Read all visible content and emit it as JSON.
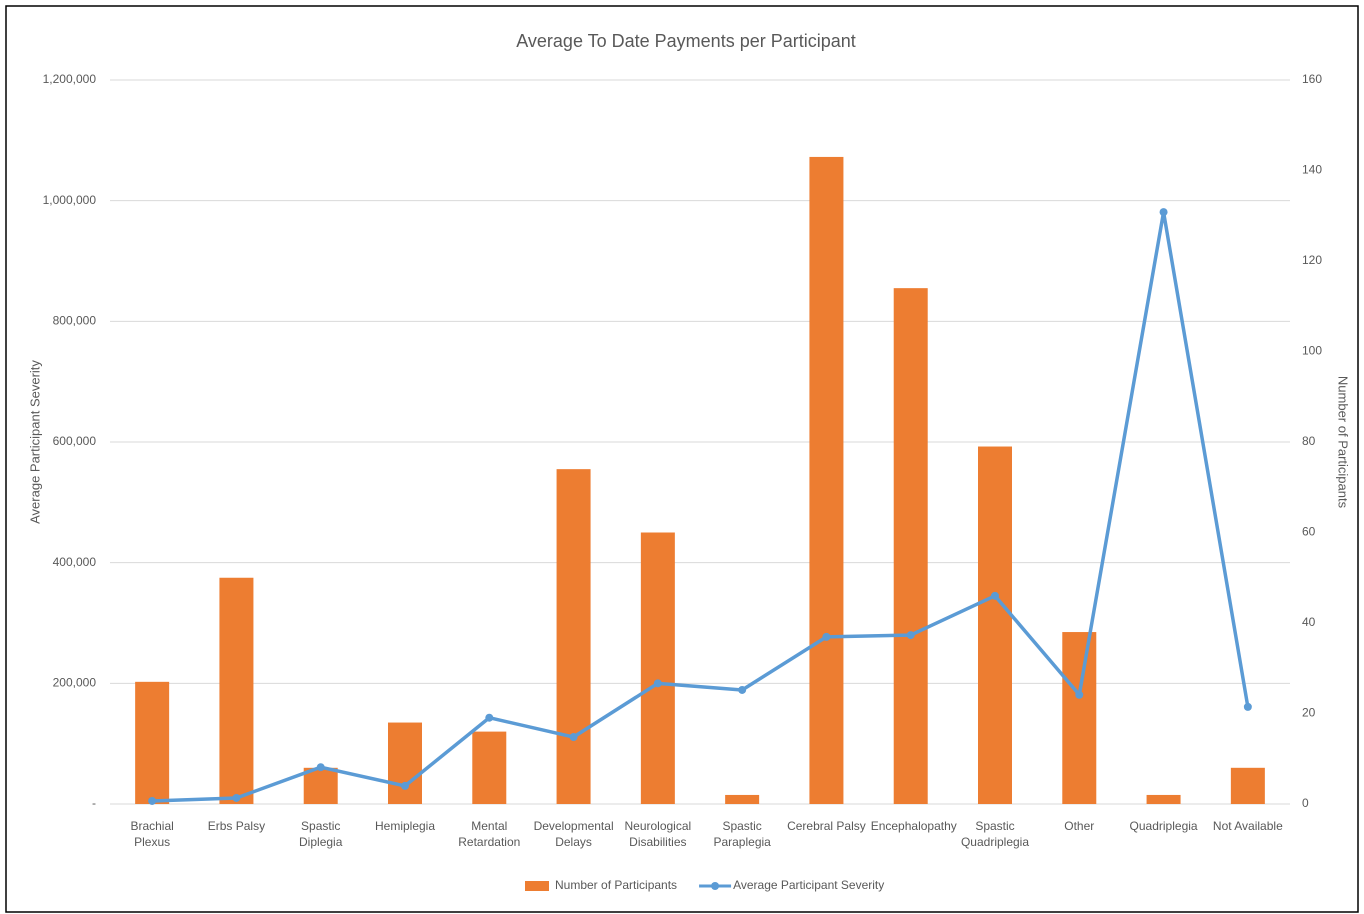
{
  "chart_data": {
    "type": "bar-line",
    "title": "Average To Date Payments per Participant",
    "y_label": "Average Participant Severity",
    "y2_label": "Number of Participants",
    "categories": [
      "Brachial Plexus",
      "Erbs Palsy",
      "Spastic Diplegia",
      "Hemiplegia",
      "Mental Retardation",
      "Developmental Delays",
      "Neurological Disabilities",
      "Spastic Paraplegia",
      "Cerebral Palsy",
      "Encephalopathy",
      "Spastic Quadriplegia",
      "Other",
      "Quadriplegia",
      "Not Available"
    ],
    "series": [
      {
        "name": "Number of Participants",
        "type": "bar",
        "axis": "y2",
        "color": "#ed7d31",
        "values": [
          27,
          50,
          8,
          18,
          16,
          74,
          60,
          2,
          143,
          114,
          79,
          38,
          2,
          8
        ]
      },
      {
        "name": "Average Participant Severity",
        "type": "line",
        "axis": "y",
        "color": "#5b9bd5",
        "values": [
          5000,
          10000,
          61000,
          30000,
          143000,
          111000,
          200000,
          189000,
          277000,
          280000,
          345000,
          181000,
          981000,
          161000
        ]
      }
    ],
    "ylim": [
      0,
      1200000
    ],
    "yticks": [
      {
        "value": 0,
        "label": "-"
      },
      {
        "value": 200000,
        "label": "200,000"
      },
      {
        "value": 400000,
        "label": "400,000"
      },
      {
        "value": 600000,
        "label": "600,000"
      },
      {
        "value": 800000,
        "label": "800,000"
      },
      {
        "value": 1000000,
        "label": "1,000,000"
      },
      {
        "value": 1200000,
        "label": "1,200,000"
      }
    ],
    "y2lim": [
      0,
      160
    ],
    "y2ticks": [
      0,
      20,
      40,
      60,
      80,
      100,
      120,
      140,
      160
    ],
    "grid": true,
    "legend": "bottom"
  }
}
